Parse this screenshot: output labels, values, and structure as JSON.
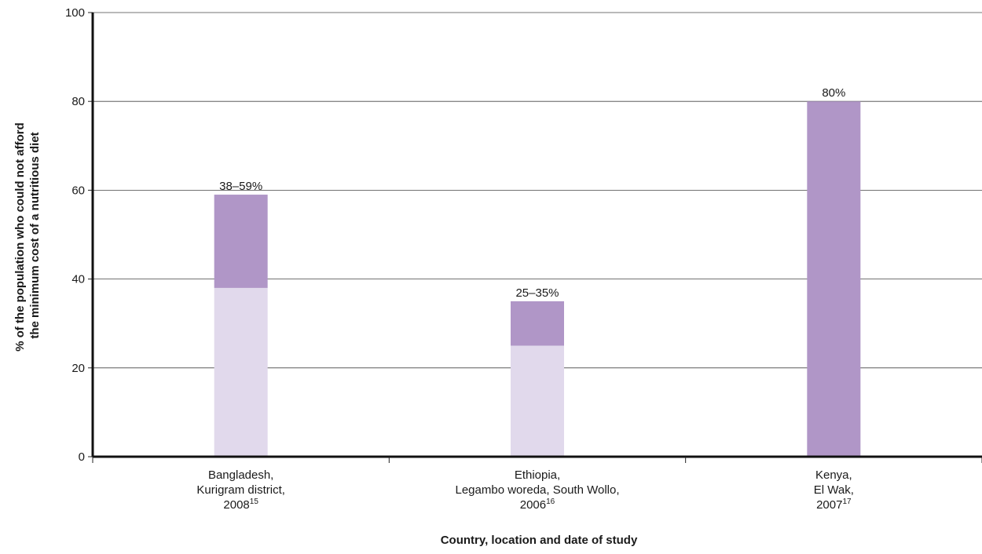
{
  "chart_data": {
    "type": "bar",
    "stacked": true,
    "xlabel": "Country, location and date of study",
    "ylabel": [
      "% of the population who could not afford",
      "the minimum cost of a nutritious diet"
    ],
    "ylim": [
      0,
      100
    ],
    "yticks": [
      0,
      20,
      40,
      60,
      80,
      100
    ],
    "grid": true,
    "categories": [
      {
        "lines": [
          "Bangladesh,",
          "Kurigram district,",
          "2008"
        ],
        "ref": "15"
      },
      {
        "lines": [
          "Ethiopia,",
          "Legambo woreda, South Wollo,",
          "2006"
        ],
        "ref": "16"
      },
      {
        "lines": [
          "Kenya,",
          "El Wak,",
          "2007"
        ],
        "ref": "17"
      }
    ],
    "series": [
      {
        "values": [
          38,
          25,
          0
        ],
        "color": "#e1d9ec"
      },
      {
        "values": [
          21,
          10,
          80
        ],
        "color": "#b096c7"
      }
    ],
    "data_labels": [
      "38–59%",
      "25–35%",
      "80%"
    ]
  }
}
